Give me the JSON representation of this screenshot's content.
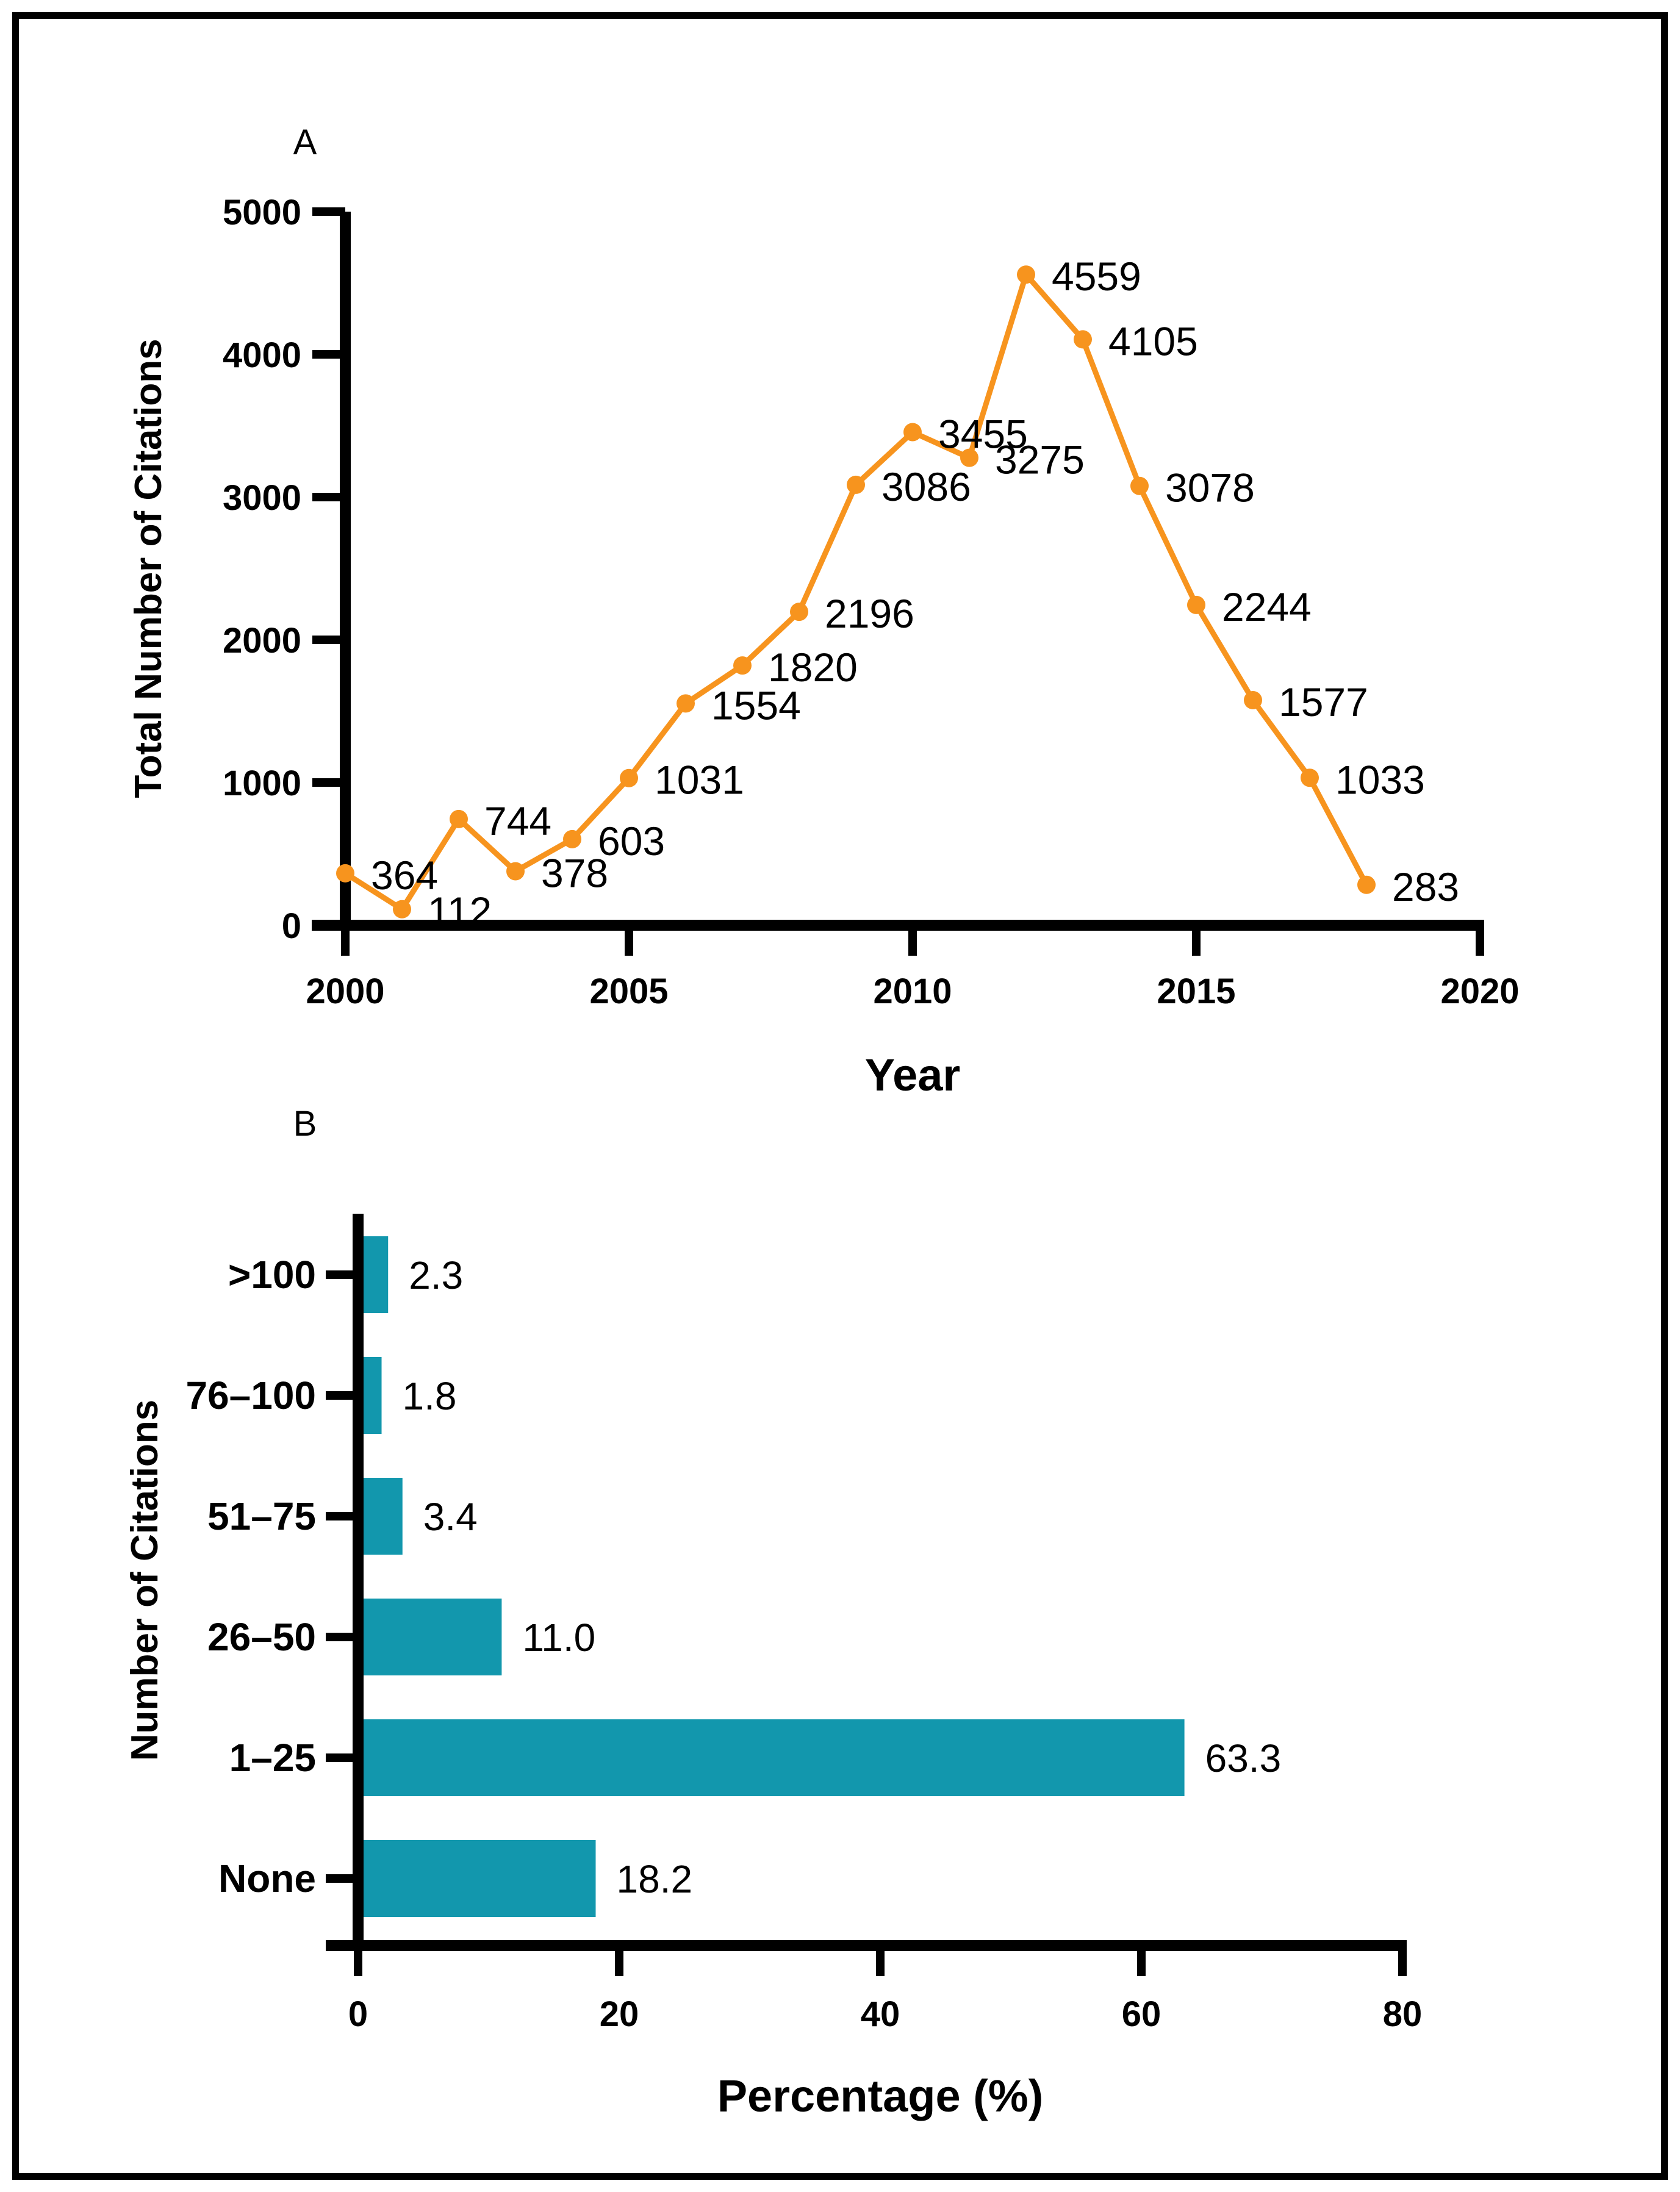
{
  "chart_data": [
    {
      "id": "A",
      "panel_letter": "A",
      "type": "line",
      "xlabel": "Year",
      "ylabel": "Total Number of Citations",
      "x": [
        2000,
        2001,
        2002,
        2003,
        2004,
        2005,
        2006,
        2007,
        2008,
        2009,
        2010,
        2011,
        2012,
        2013,
        2014,
        2015,
        2016,
        2017,
        2018
      ],
      "values": [
        364,
        112,
        744,
        378,
        603,
        1031,
        1554,
        1820,
        2196,
        3086,
        3455,
        3275,
        4559,
        4105,
        3078,
        2244,
        1577,
        1033,
        283
      ],
      "point_labels": [
        "364",
        "112",
        "744",
        "378",
        "603",
        "1031",
        "1554",
        "1820",
        "2196",
        "3086",
        "3455",
        "3275",
        "4559",
        "4105",
        "3078",
        "2244",
        "1577",
        "1033",
        "283"
      ],
      "x_ticks": [
        "2000",
        "2005",
        "2010",
        "2015",
        "2020"
      ],
      "x_tick_values": [
        2000,
        2005,
        2010,
        2015,
        2020
      ],
      "y_ticks": [
        "0",
        "1000",
        "2000",
        "3000",
        "4000",
        "5000"
      ],
      "y_tick_values": [
        0,
        1000,
        2000,
        3000,
        4000,
        5000
      ],
      "xlim": [
        2000,
        2020
      ],
      "ylim": [
        0,
        5000
      ],
      "grid": false,
      "legend": "none",
      "line_color": "#F7941E",
      "marker": "circle"
    },
    {
      "id": "B",
      "panel_letter": "B",
      "type": "bar",
      "orientation": "horizontal",
      "xlabel": "Percentage (%)",
      "ylabel": "Number of Citations",
      "categories": [
        ">100",
        "76–100",
        "51–75",
        "26–50",
        "1–25",
        "None"
      ],
      "values": [
        2.3,
        1.8,
        3.4,
        11.0,
        63.3,
        18.2
      ],
      "value_labels": [
        "2.3",
        "1.8",
        "3.4",
        "11.0",
        "63.3",
        "18.2"
      ],
      "x_ticks": [
        "0",
        "20",
        "40",
        "60",
        "80"
      ],
      "x_tick_values": [
        0,
        20,
        40,
        60,
        80
      ],
      "xlim": [
        0,
        80
      ],
      "grid": false,
      "legend": "none",
      "bar_color": "#1297AD"
    }
  ],
  "colors": {
    "line": "#F7941E",
    "bar": "#1297AD",
    "axis": "#000000",
    "background": "#FFFFFF"
  }
}
